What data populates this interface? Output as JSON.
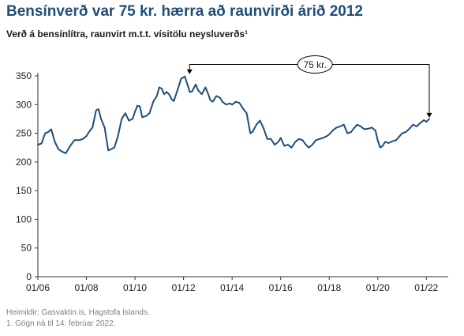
{
  "title": "Bensínverð var 75 kr. hærra að raunvirði árið 2012",
  "subtitle": "Verð á bensínlítra, raunvirt m.t.t. vísitölu neysluverðs¹",
  "footer": {
    "source": "Heimildir: Gasvaktin.is, Hagstofa Íslands.",
    "note": "1. Gögn ná til 14. febrúar 2022."
  },
  "colors": {
    "line": "#1f4e79",
    "title": "#1f4e79",
    "axis": "#333333",
    "footer": "#7f7f7f"
  },
  "chart_data": {
    "type": "line",
    "title": "Bensínverð var 75 kr. hærra að raunvirði árið 2012",
    "subtitle": "Verð á bensínlítra, raunvirt m.t.t. vísitölu neysluverðs¹",
    "xlabel": "",
    "ylabel": "",
    "ylim": [
      0,
      350
    ],
    "yticks": [
      0,
      50,
      100,
      150,
      200,
      250,
      300,
      350
    ],
    "xlim": [
      2006.0,
      2022.9
    ],
    "xticks": [
      {
        "x": 2006,
        "label": "01/06"
      },
      {
        "x": 2008,
        "label": "01/08"
      },
      {
        "x": 2010,
        "label": "01/10"
      },
      {
        "x": 2012,
        "label": "01/12"
      },
      {
        "x": 2014,
        "label": "01/14"
      },
      {
        "x": 2016,
        "label": "01/16"
      },
      {
        "x": 2018,
        "label": "01/18"
      },
      {
        "x": 2020,
        "label": "01/20"
      },
      {
        "x": 2022,
        "label": "01/22"
      }
    ],
    "grid": false,
    "annotation": {
      "label": "75 kr.",
      "from": {
        "x": 2012.25,
        "y": 349
      },
      "to": {
        "x": 2022.12,
        "y": 273
      }
    },
    "series": [
      {
        "name": "",
        "x": [
          2006.0,
          2006.15,
          2006.3,
          2006.42,
          2006.55,
          2006.7,
          2006.85,
          2007.0,
          2007.15,
          2007.3,
          2007.5,
          2007.7,
          2007.85,
          2008.0,
          2008.1,
          2008.25,
          2008.4,
          2008.5,
          2008.6,
          2008.75,
          2008.9,
          2009.0,
          2009.15,
          2009.3,
          2009.45,
          2009.6,
          2009.75,
          2009.9,
          2010.0,
          2010.1,
          2010.2,
          2010.3,
          2010.45,
          2010.6,
          2010.75,
          2010.9,
          2011.0,
          2011.1,
          2011.2,
          2011.3,
          2011.4,
          2011.5,
          2011.6,
          2011.75,
          2011.9,
          2012.05,
          2012.2,
          2012.25,
          2012.35,
          2012.5,
          2012.6,
          2012.75,
          2012.9,
          2013.0,
          2013.1,
          2013.2,
          2013.35,
          2013.5,
          2013.6,
          2013.75,
          2013.9,
          2014.0,
          2014.15,
          2014.3,
          2014.45,
          2014.6,
          2014.75,
          2014.85,
          2015.0,
          2015.15,
          2015.3,
          2015.45,
          2015.6,
          2015.75,
          2015.9,
          2016.0,
          2016.15,
          2016.3,
          2016.45,
          2016.6,
          2016.75,
          2016.9,
          2017.0,
          2017.15,
          2017.3,
          2017.45,
          2017.6,
          2017.75,
          2017.9,
          2018.0,
          2018.15,
          2018.3,
          2018.45,
          2018.6,
          2018.75,
          2018.9,
          2019.0,
          2019.15,
          2019.3,
          2019.45,
          2019.6,
          2019.75,
          2019.9,
          2020.0,
          2020.1,
          2020.2,
          2020.3,
          2020.45,
          2020.6,
          2020.75,
          2020.9,
          2021.0,
          2021.15,
          2021.3,
          2021.45,
          2021.6,
          2021.75,
          2021.9,
          2022.0,
          2022.12
        ],
        "values": [
          230,
          232,
          250,
          252,
          257,
          235,
          222,
          218,
          215,
          226,
          238,
          238,
          240,
          245,
          252,
          260,
          290,
          292,
          275,
          260,
          220,
          222,
          225,
          245,
          275,
          285,
          272,
          275,
          288,
          298,
          297,
          278,
          280,
          285,
          305,
          315,
          330,
          328,
          318,
          322,
          318,
          310,
          306,
          325,
          345,
          349,
          330,
          322,
          323,
          335,
          325,
          318,
          330,
          320,
          308,
          305,
          315,
          312,
          305,
          300,
          302,
          300,
          305,
          303,
          293,
          285,
          250,
          253,
          265,
          272,
          258,
          240,
          240,
          230,
          235,
          242,
          228,
          230,
          225,
          235,
          240,
          238,
          232,
          225,
          230,
          238,
          240,
          242,
          245,
          248,
          255,
          260,
          262,
          265,
          250,
          252,
          258,
          265,
          262,
          257,
          258,
          260,
          255,
          237,
          225,
          228,
          235,
          233,
          236,
          238,
          245,
          250,
          252,
          258,
          265,
          262,
          268,
          273,
          270,
          275
        ]
      }
    ]
  }
}
